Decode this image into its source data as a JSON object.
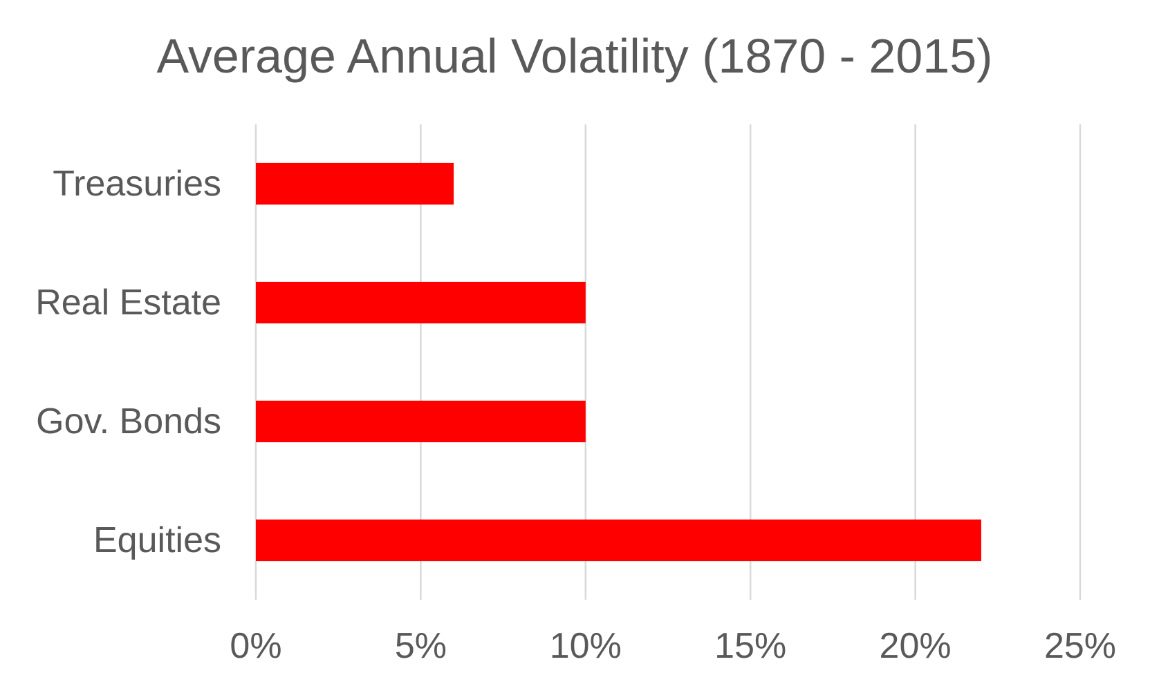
{
  "chart_data": {
    "type": "bar",
    "orientation": "horizontal",
    "title": "Average Annual Volatility (1870 - 2015)",
    "categories": [
      "Treasuries",
      "Real Estate",
      "Gov. Bonds",
      "Equities"
    ],
    "values": [
      6,
      10,
      10,
      22
    ],
    "value_unit": "%",
    "xlim": [
      0,
      25
    ],
    "xticks": [
      0,
      5,
      10,
      15,
      20,
      25
    ],
    "xtick_labels": [
      "0%",
      "5%",
      "10%",
      "15%",
      "20%",
      "25%"
    ],
    "xlabel": "",
    "ylabel": "",
    "grid": "vertical",
    "legend": "none",
    "bar_color": "#ff0000",
    "text_color": "#595959",
    "grid_color": "#d9d9d9"
  }
}
